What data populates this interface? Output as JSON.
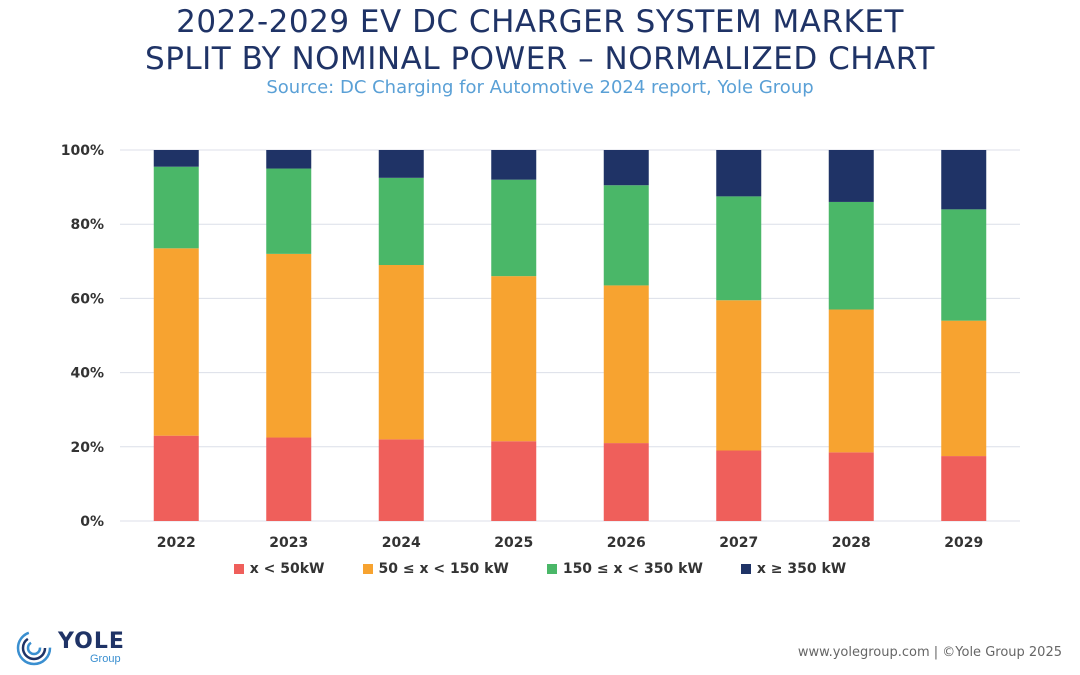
{
  "header": {
    "title_line1": "2022-2029 EV DC CHARGER SYSTEM MARKET",
    "title_line2": "SPLIT BY NOMINAL POWER – NORMALIZED CHART",
    "subtitle": "Source: DC Charging for Automotive 2024 report, Yole Group"
  },
  "chart_data": {
    "type": "bar",
    "stacked": true,
    "normalized": true,
    "categories": [
      "2022",
      "2023",
      "2024",
      "2025",
      "2026",
      "2027",
      "2028",
      "2029"
    ],
    "series": [
      {
        "name": "x < 50kW",
        "color": "#ef5f5b",
        "values": [
          23,
          22.5,
          22,
          21.5,
          21,
          19,
          18.5,
          17.5
        ]
      },
      {
        "name": "50 ≤ x < 150 kW",
        "color": "#f7a330",
        "values": [
          50.5,
          49.5,
          47,
          44.5,
          42.5,
          40.5,
          38.5,
          36.5
        ]
      },
      {
        "name": "150 ≤ x < 350 kW",
        "color": "#4ab768",
        "values": [
          22,
          23,
          23.5,
          26,
          27,
          28,
          29,
          30
        ]
      },
      {
        "name": "x ≥ 350 kW",
        "color": "#1f3366",
        "values": [
          4.5,
          5,
          7.5,
          8,
          9.5,
          12.5,
          14,
          16
        ]
      }
    ],
    "ylim": [
      0,
      100
    ],
    "yticks": [
      "0%",
      "20%",
      "40%",
      "60%",
      "80%",
      "100%"
    ],
    "grid": true,
    "legend_position": "bottom"
  },
  "branding": {
    "logo_name": "YOLE",
    "logo_sub": "Group",
    "footer": "www.yolegroup.com | ©Yole Group 2025"
  }
}
